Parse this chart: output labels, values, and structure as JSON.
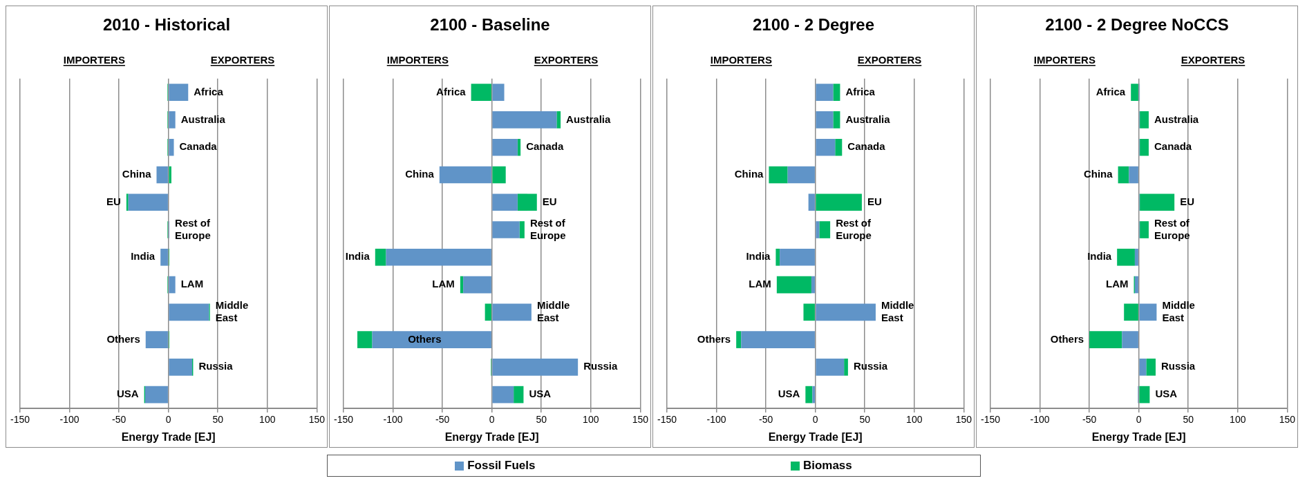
{
  "chart_data": [
    {
      "type": "bar",
      "orientation": "horizontal",
      "stacked": true,
      "title": "2010 - Historical",
      "xlabel": "Energy Trade [EJ]",
      "annotations": [
        "IMPORTERS",
        "EXPORTERS"
      ],
      "categories": [
        "Africa",
        "Australia",
        "Canada",
        "China",
        "EU",
        "Rest of Europe",
        "India",
        "LAM",
        "Middle East",
        "Others",
        "Russia",
        "USA"
      ],
      "xlim": [
        -150,
        150
      ],
      "xticks": [
        -150,
        -100,
        -50,
        0,
        50,
        100,
        150
      ],
      "grid": "x",
      "legend": "bottom",
      "series": [
        {
          "name": "Fossil Fuels",
          "color": "#6094c8",
          "values": [
            20,
            7,
            5.5,
            -12,
            -40.5,
            1,
            -8,
            7,
            41,
            -23,
            24,
            -23.5
          ]
        },
        {
          "name": "Biomass",
          "color": "#00b964",
          "values": [
            -1,
            -1,
            -1,
            3,
            -2,
            -1,
            1,
            -1,
            1,
            1,
            1,
            -1
          ]
        }
      ]
    },
    {
      "type": "bar",
      "orientation": "horizontal",
      "stacked": true,
      "title": "2100 - Baseline",
      "xlabel": "Energy Trade [EJ]",
      "annotations": [
        "IMPORTERS",
        "EXPORTERS"
      ],
      "categories": [
        "Africa",
        "Australia",
        "Canada",
        "China",
        "EU",
        "Rest of Europe",
        "India",
        "LAM",
        "Middle East",
        "Others",
        "Russia",
        "USA"
      ],
      "xlim": [
        -150,
        150
      ],
      "xticks": [
        -150,
        -100,
        -50,
        0,
        50,
        100,
        150
      ],
      "grid": "x",
      "series": [
        {
          "color": "#6094c8",
          "values": [
            12.5,
            65.5,
            26,
            -53,
            26,
            28,
            -107,
            -29,
            40,
            -121,
            87,
            22
          ]
        },
        {
          "color": "#00b964",
          "values": [
            -21,
            4,
            3,
            14,
            19.5,
            5,
            -11,
            -3,
            -7,
            -15,
            -1,
            10
          ]
        }
      ]
    },
    {
      "type": "bar",
      "orientation": "horizontal",
      "stacked": true,
      "title": "2100 - 2 Degree",
      "xlabel": "Energy Trade [EJ]",
      "annotations": [
        "IMPORTERS",
        "EXPORTERS"
      ],
      "categories": [
        "Africa",
        "Australia",
        "Canada",
        "China",
        "EU",
        "Rest of Europe",
        "India",
        "LAM",
        "Middle East",
        "Others",
        "Russia",
        "USA"
      ],
      "xlim": [
        -150,
        150
      ],
      "xticks": [
        -150,
        -100,
        -50,
        0,
        50,
        100,
        150
      ],
      "grid": "x",
      "series": [
        {
          "color": "#6094c8",
          "values": [
            18,
            18,
            20,
            -28,
            -7,
            4,
            -36,
            -4,
            61,
            -75,
            29,
            -3
          ]
        },
        {
          "color": "#00b964",
          "values": [
            7,
            7,
            7,
            -19,
            47,
            11,
            -4,
            -35,
            -12,
            -5,
            4,
            -7
          ]
        }
      ]
    },
    {
      "type": "bar",
      "orientation": "horizontal",
      "stacked": true,
      "title": "2100 - 2 Degree NoCCS",
      "xlabel": "Energy Trade [EJ]",
      "annotations": [
        "IMPORTERS",
        "EXPORTERS"
      ],
      "categories": [
        "Africa",
        "Australia",
        "Canada",
        "China",
        "EU",
        "Rest of Europe",
        "India",
        "LAM",
        "Middle East",
        "Others",
        "Russia",
        "USA"
      ],
      "xlim": [
        -150,
        150
      ],
      "xticks": [
        -150,
        -100,
        -50,
        0,
        50,
        100,
        150
      ],
      "grid": "x",
      "series": [
        {
          "color": "#6094c8",
          "values": [
            1,
            1,
            1,
            -10,
            1,
            1,
            -4,
            -4,
            18,
            -17,
            7.5,
            -1
          ]
        },
        {
          "color": "#00b964",
          "values": [
            -8,
            9,
            9,
            -11,
            35,
            9,
            -18,
            -1,
            -15,
            -33,
            9.5,
            11
          ]
        }
      ]
    }
  ]
}
